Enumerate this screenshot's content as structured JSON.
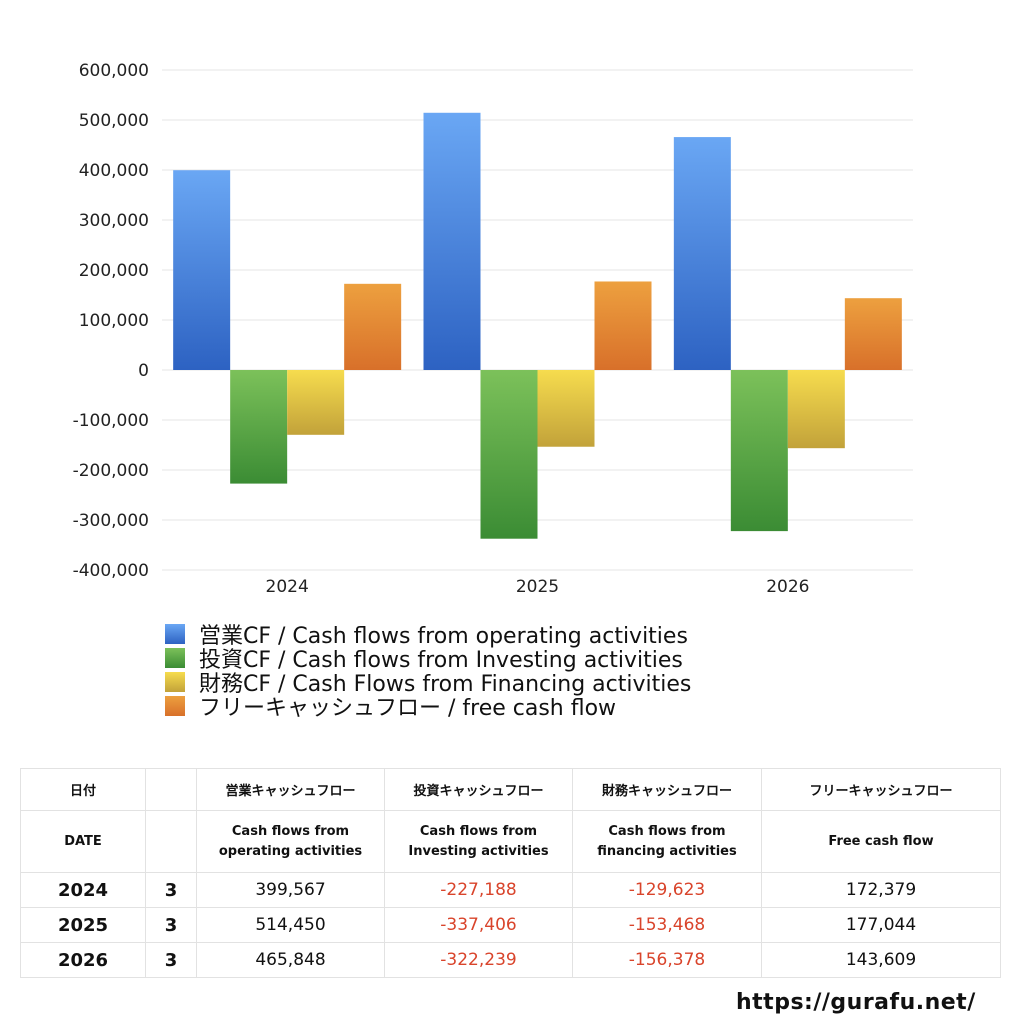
{
  "chart_data": {
    "type": "bar",
    "categories": [
      "2024",
      "2025",
      "2026"
    ],
    "series": [
      {
        "name": "営業CF / Cash flows from operating activities",
        "values": [
          399567,
          514450,
          465848
        ],
        "color_top": "#6aa7f4",
        "color_bottom": "#2d62c2"
      },
      {
        "name": "投資CF / Cash flows from Investing activities",
        "values": [
          -227188,
          -337406,
          -322239
        ],
        "color_top": "#7cc15a",
        "color_bottom": "#3b8c34"
      },
      {
        "name": "財務CF / Cash Flows from Financing activities",
        "values": [
          -129623,
          -153468,
          -156378
        ],
        "color_top": "#f6dc4e",
        "color_bottom": "#c2a23a"
      },
      {
        "name": "フリーキャッシュフロー / free cash flow",
        "values": [
          172379,
          177044,
          143609
        ],
        "color_top": "#eda03f",
        "color_bottom": "#d8702a"
      }
    ],
    "yticks": [
      "600,000",
      "500,000",
      "400,000",
      "300,000",
      "200,000",
      "100,000",
      "0",
      "-100,000",
      "-200,000",
      "-300,000",
      "-400,000"
    ],
    "ylim": [
      -400000,
      600000
    ],
    "grid": true,
    "legend_position": "bottom-left"
  },
  "table": {
    "header_row1": [
      "日付",
      "",
      "営業キャッシュフロー",
      "投資キャッシュフロー",
      "財務キャッシュフロー",
      "フリーキャッシュフロー"
    ],
    "header_row2": [
      "DATE",
      "",
      "Cash flows from\noperating activities",
      "Cash flows from\nInvesting activities",
      "Cash flows from\nfinancing activities",
      "Free cash flow"
    ],
    "rows": [
      {
        "year": "2024",
        "month": "3",
        "operating": "399,567",
        "investing": "-227,188",
        "financing": "-129,623",
        "free": "172,379"
      },
      {
        "year": "2025",
        "month": "3",
        "operating": "514,450",
        "investing": "-337,406",
        "financing": "-153,468",
        "free": "177,044"
      },
      {
        "year": "2026",
        "month": "3",
        "operating": "465,848",
        "investing": "-322,239",
        "financing": "-156,378",
        "free": "143,609"
      }
    ]
  },
  "footer": {
    "url": "https://gurafu.net/"
  },
  "colors": {
    "negative_text": "#d9442b",
    "grid": "#e6e6e6"
  }
}
